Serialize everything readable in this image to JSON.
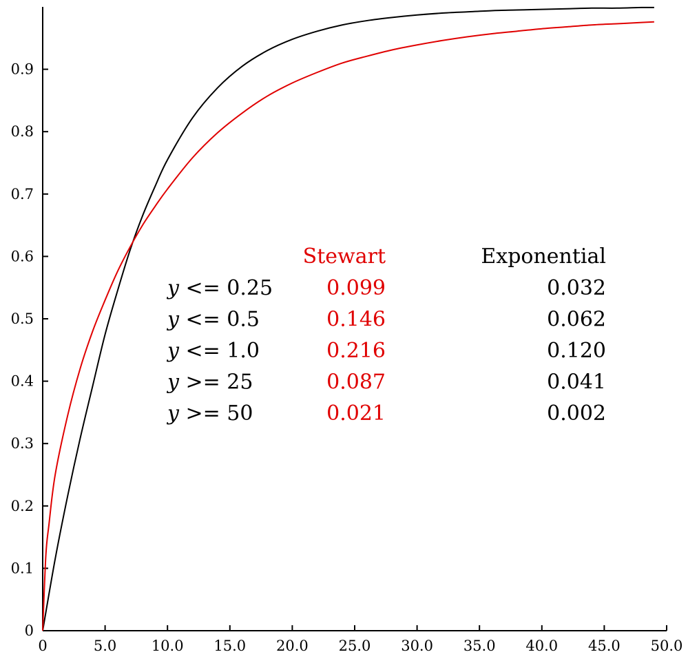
{
  "chart_data": {
    "type": "line",
    "title": "",
    "xlabel": "",
    "ylabel": "",
    "xlim": [
      0,
      50
    ],
    "ylim": [
      0,
      1
    ],
    "grid": false,
    "x_ticks": [
      "0",
      "5.0",
      "10.0",
      "15.0",
      "20.0",
      "25.0",
      "30.0",
      "35.0",
      "40.0",
      "45.0",
      "50.0"
    ],
    "x_tick_values": [
      0,
      5,
      10,
      15,
      20,
      25,
      30,
      35,
      40,
      45,
      50
    ],
    "y_ticks": [
      "0",
      "0.1",
      "0.2",
      "0.3",
      "0.4",
      "0.5",
      "0.6",
      "0.7",
      "0.8",
      "0.9"
    ],
    "y_tick_values": [
      0,
      0.1,
      0.2,
      0.3,
      0.4,
      0.5,
      0.6,
      0.7,
      0.8,
      0.9
    ],
    "series": [
      {
        "color": "#000000",
        "x": [
          0,
          1,
          2,
          3,
          4,
          5,
          6,
          7,
          8,
          9,
          10,
          12,
          14,
          16,
          18,
          20,
          22,
          24,
          26,
          28,
          30,
          32,
          34,
          36,
          38,
          40,
          42,
          44,
          46,
          48,
          49
        ],
        "y": [
          0,
          0.115,
          0.216,
          0.308,
          0.392,
          0.475,
          0.545,
          0.61,
          0.665,
          0.712,
          0.755,
          0.822,
          0.87,
          0.905,
          0.93,
          0.948,
          0.961,
          0.971,
          0.978,
          0.983,
          0.987,
          0.99,
          0.992,
          0.994,
          0.995,
          0.996,
          0.997,
          0.998,
          0.998,
          0.999,
          0.999
        ]
      },
      {
        "color": "#e00000",
        "x": [
          0,
          0.25,
          0.5,
          1,
          2,
          3,
          4,
          5,
          6,
          7,
          8,
          9,
          10,
          12,
          14,
          16,
          18,
          20,
          22,
          24,
          26,
          28,
          30,
          32,
          34,
          36,
          38,
          40,
          42,
          44,
          46,
          48,
          49
        ],
        "y": [
          0,
          0.12,
          0.17,
          0.25,
          0.345,
          0.42,
          0.48,
          0.53,
          0.576,
          0.615,
          0.65,
          0.68,
          0.708,
          0.758,
          0.798,
          0.83,
          0.857,
          0.878,
          0.895,
          0.91,
          0.921,
          0.931,
          0.939,
          0.946,
          0.952,
          0.957,
          0.961,
          0.965,
          0.968,
          0.971,
          0.973,
          0.975,
          0.976
        ]
      }
    ],
    "annotation_table": {
      "columns": [
        {
          "header": "Stewart",
          "color": "#e00000"
        },
        {
          "header": "Exponential",
          "color": "#000000"
        }
      ],
      "rows": [
        {
          "label": [
            "y",
            " <= 0.25"
          ],
          "values": [
            "0.099",
            "0.032"
          ]
        },
        {
          "label": [
            "y",
            " <= 0.5"
          ],
          "values": [
            "0.146",
            "0.062"
          ]
        },
        {
          "label": [
            "y",
            " <= 1.0"
          ],
          "values": [
            "0.216",
            "0.120"
          ]
        },
        {
          "label": [
            "y",
            " >= 25"
          ],
          "values": [
            "0.087",
            "0.041"
          ]
        },
        {
          "label": [
            "y",
            " >= 50"
          ],
          "values": [
            "0.021",
            "0.002"
          ]
        }
      ]
    }
  }
}
